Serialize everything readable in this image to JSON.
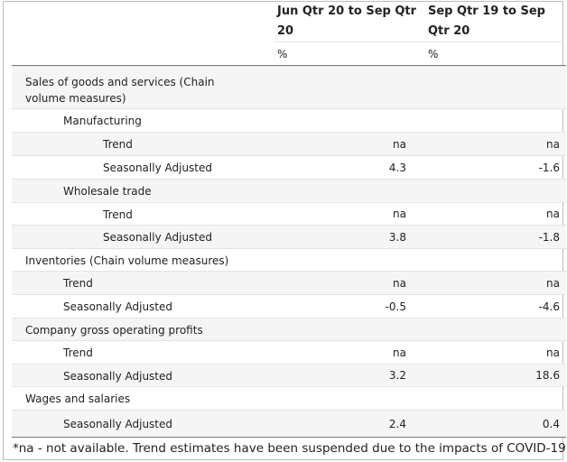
{
  "columns": [
    {
      "header": "Jun Qtr 20 to Sep Qtr 20",
      "unit": "%"
    },
    {
      "header": "Sep Qtr 19 to Sep Qtr 20",
      "unit": "%"
    }
  ],
  "rows": [
    {
      "label": "Sales of goods and services (Chain volume measures)",
      "v1": "",
      "v2": ""
    },
    {
      "label": "Manufacturing",
      "v1": "",
      "v2": ""
    },
    {
      "label": "Trend",
      "v1": "na",
      "v2": "na"
    },
    {
      "label": "Seasonally Adjusted",
      "v1": "4.3",
      "v2": "-1.6"
    },
    {
      "label": "Wholesale trade",
      "v1": "",
      "v2": ""
    },
    {
      "label": "Trend",
      "v1": "na",
      "v2": "na"
    },
    {
      "label": "Seasonally Adjusted",
      "v1": "3.8",
      "v2": "-1.8"
    },
    {
      "label": "Inventories (Chain volume measures)",
      "v1": "",
      "v2": ""
    },
    {
      "label": "Trend",
      "v1": "na",
      "v2": "na"
    },
    {
      "label": "Seasonally Adjusted",
      "v1": "-0.5",
      "v2": "-4.6"
    },
    {
      "label": "Company gross operating profits",
      "v1": "",
      "v2": ""
    },
    {
      "label": "Trend",
      "v1": "na",
      "v2": "na"
    },
    {
      "label": "Seasonally Adjusted",
      "v1": "3.2",
      "v2": "18.6"
    },
    {
      "label": "Wages and salaries",
      "v1": "",
      "v2": ""
    },
    {
      "label": "Seasonally Adjusted",
      "v1": "2.4",
      "v2": "0.4"
    }
  ],
  "footnote": "*na - not available. Trend estimates have been suspended due to the impacts of COVID-19"
}
